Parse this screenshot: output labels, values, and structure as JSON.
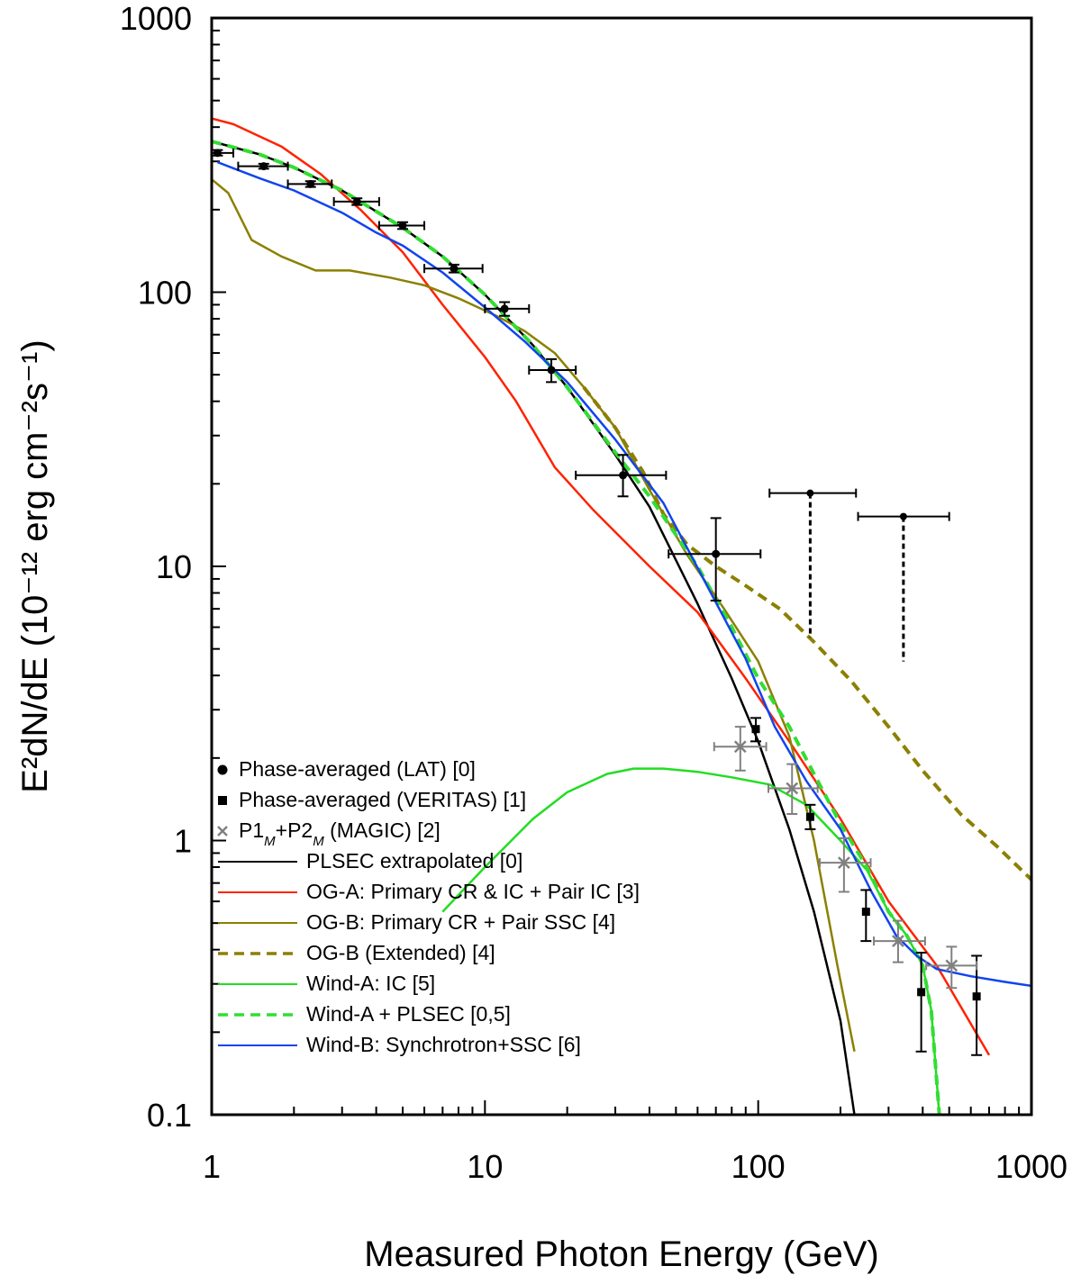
{
  "chart_data": {
    "type": "scatter",
    "x_scale": "log",
    "y_scale": "log",
    "xlabel": "Measured Photon Energy (GeV)",
    "ylabel": "E²dN/dE (10⁻¹² erg cm⁻²s⁻¹)",
    "xlim": [
      1,
      1000
    ],
    "ylim": [
      0.1,
      1000
    ],
    "x_ticks": [
      1,
      10,
      100,
      1000
    ],
    "x_tick_labels": [
      "1",
      "10",
      "100",
      "1000"
    ],
    "y_ticks": [
      0.1,
      1,
      10,
      100,
      1000
    ],
    "y_tick_labels": [
      "0.1",
      "1",
      "10",
      "100",
      "1000"
    ],
    "legend_position": "bottom-left",
    "points": [
      {
        "name": "Phase-averaged (LAT) [0]",
        "marker": "circle",
        "color": "#000000",
        "data": [
          {
            "x": 1.05,
            "y": 322,
            "xlo": 1.0,
            "xhi": 1.2,
            "ylo": 315,
            "yhi": 330
          },
          {
            "x": 1.55,
            "y": 288,
            "xlo": 1.25,
            "xhi": 1.9,
            "ylo": 282,
            "yhi": 294
          },
          {
            "x": 2.3,
            "y": 248,
            "xlo": 1.9,
            "xhi": 2.75,
            "ylo": 242,
            "yhi": 254
          },
          {
            "x": 3.4,
            "y": 214,
            "xlo": 2.8,
            "xhi": 4.1,
            "ylo": 208,
            "yhi": 220
          },
          {
            "x": 5.0,
            "y": 175,
            "xlo": 4.1,
            "xhi": 6.0,
            "ylo": 170,
            "yhi": 180
          },
          {
            "x": 7.7,
            "y": 122,
            "xlo": 6.0,
            "xhi": 9.8,
            "ylo": 118,
            "yhi": 126
          },
          {
            "x": 11.8,
            "y": 87,
            "xlo": 10.0,
            "xhi": 14.5,
            "ylo": 82,
            "yhi": 92
          },
          {
            "x": 17.5,
            "y": 52,
            "xlo": 14.5,
            "xhi": 21.5,
            "ylo": 47,
            "yhi": 57
          },
          {
            "x": 32,
            "y": 21.5,
            "xlo": 21.5,
            "xhi": 46,
            "ylo": 18,
            "yhi": 25.5
          },
          {
            "x": 70,
            "y": 11.1,
            "xlo": 47,
            "xhi": 102,
            "ylo": 7.5,
            "yhi": 15
          }
        ]
      },
      {
        "name": "Phase-averaged (VERITAS) [1]",
        "marker": "square",
        "color": "#000000",
        "data": [
          {
            "x": 98,
            "y": 2.55,
            "ylo": 2.3,
            "yhi": 2.8
          },
          {
            "x": 155,
            "y": 1.22,
            "ylo": 1.1,
            "yhi": 1.35
          },
          {
            "x": 248,
            "y": 0.55,
            "ylo": 0.43,
            "yhi": 0.66
          },
          {
            "x": 395,
            "y": 0.28,
            "ylo": 0.17,
            "yhi": 0.39
          },
          {
            "x": 630,
            "y": 0.27,
            "ylo": 0.165,
            "yhi": 0.38
          }
        ]
      },
      {
        "name": "P1M+P2M (MAGIC) [2]",
        "marker": "x",
        "color": "#808080",
        "data": [
          {
            "x": 86,
            "y": 2.2,
            "xlo": 69,
            "xhi": 107,
            "ylo": 1.8,
            "yhi": 2.6
          },
          {
            "x": 133,
            "y": 1.55,
            "xlo": 109,
            "xhi": 165,
            "ylo": 1.25,
            "yhi": 1.9
          },
          {
            "x": 206,
            "y": 0.83,
            "xlo": 168,
            "xhi": 258,
            "ylo": 0.65,
            "yhi": 1.02
          },
          {
            "x": 325,
            "y": 0.43,
            "xlo": 265,
            "xhi": 408,
            "ylo": 0.36,
            "yhi": 0.51
          },
          {
            "x": 510,
            "y": 0.35,
            "xlo": 412,
            "xhi": 630,
            "ylo": 0.29,
            "yhi": 0.41
          }
        ]
      }
    ],
    "upper_limits": [
      {
        "x": 155,
        "y": 18.5,
        "xlo": 110,
        "xhi": 228,
        "y_end": 5.5
      },
      {
        "x": 340,
        "y": 15.2,
        "xlo": 232,
        "xhi": 500,
        "y_end": 4.5
      }
    ],
    "series": [
      {
        "name": "PLSEC extrapolated [0]",
        "color": "#000000",
        "dash": "solid",
        "x": [
          1,
          1.5,
          2,
          3,
          5,
          7,
          10,
          15,
          20,
          30,
          40,
          60,
          80,
          100,
          130,
          160,
          200,
          225
        ],
        "y": [
          355,
          318,
          285,
          235,
          172,
          135,
          98,
          64,
          45,
          25.5,
          16.5,
          7.3,
          3.9,
          2.3,
          1.1,
          0.55,
          0.22,
          0.1
        ]
      },
      {
        "name": "OG-A: Primary CR & IC + Pair IC [3]",
        "color": "#ff2200",
        "dash": "solid",
        "x": [
          1,
          1.2,
          1.8,
          2.5,
          3.5,
          5,
          7,
          10,
          13,
          18,
          25,
          40,
          60,
          90,
          130,
          200,
          300,
          450,
          700
        ],
        "y": [
          430,
          410,
          340,
          270,
          200,
          140,
          90,
          58,
          40,
          23,
          16,
          10,
          6.8,
          3.9,
          2.3,
          1.2,
          0.6,
          0.35,
          0.165
        ]
      },
      {
        "name": "OG-B: Primary CR + Pair SSC [4]",
        "color": "#8b8000",
        "dash": "solid",
        "x": [
          1,
          1.15,
          1.4,
          1.8,
          2.4,
          3.2,
          4.5,
          6,
          8,
          11,
          14,
          18,
          23,
          30,
          40,
          55,
          75,
          100,
          130,
          160,
          195,
          225
        ],
        "y": [
          258,
          230,
          155,
          135,
          120,
          120,
          113,
          106,
          95,
          82,
          72,
          60,
          45,
          32,
          19,
          11,
          7,
          4.5,
          2.4,
          1.0,
          0.35,
          0.17
        ]
      },
      {
        "name": "OG-B (Extended) [4]",
        "color": "#8b8000",
        "dash": "dashed",
        "x": [
          23,
          30,
          38,
          45,
          55,
          70,
          90,
          120,
          160,
          220,
          300,
          400,
          550,
          750,
          1000
        ],
        "y": [
          45,
          32,
          22,
          15.5,
          12,
          10,
          8.5,
          7,
          5.3,
          3.8,
          2.6,
          1.8,
          1.25,
          0.95,
          0.72
        ]
      },
      {
        "name": "Wind-A: IC [5]",
        "color": "#22dd22",
        "dash": "solid",
        "x": [
          7,
          10,
          15,
          20,
          28,
          35,
          45,
          60,
          80,
          110,
          150,
          200,
          250,
          300,
          350,
          400,
          430,
          460
        ],
        "y": [
          0.55,
          0.8,
          1.2,
          1.5,
          1.75,
          1.83,
          1.83,
          1.78,
          1.7,
          1.6,
          1.35,
          1.0,
          0.78,
          0.55,
          0.45,
          0.35,
          0.24,
          0.1
        ]
      },
      {
        "name": "Wind-A + PLSEC [0,5]",
        "color": "#33dd33",
        "dash": "dashed",
        "x": [
          1,
          1.5,
          2,
          3,
          5,
          7,
          10,
          15,
          20,
          30,
          40,
          60,
          80,
          100,
          130,
          160,
          200,
          250,
          300,
          350,
          400,
          430,
          460
        ],
        "y": [
          355,
          318,
          285,
          235,
          172,
          135,
          98,
          64,
          45,
          26,
          18,
          10,
          6,
          3.9,
          2.6,
          1.75,
          1.15,
          0.8,
          0.55,
          0.45,
          0.35,
          0.24,
          0.1
        ]
      },
      {
        "name": "Wind-B: Synchrotron+SSC [6]",
        "color": "#1144ee",
        "dash": "solid",
        "x": [
          1.05,
          1.5,
          2,
          3,
          4,
          5,
          7,
          10,
          14,
          20,
          30,
          45,
          65,
          90,
          115,
          150,
          200,
          260,
          320,
          380,
          450,
          600,
          800,
          1000
        ],
        "y": [
          298,
          260,
          235,
          195,
          165,
          148,
          118,
          88,
          66,
          47,
          29,
          17,
          8.5,
          4.6,
          2.6,
          1.65,
          1.1,
          0.65,
          0.45,
          0.38,
          0.34,
          0.32,
          0.305,
          0.295
        ]
      }
    ],
    "legend": [
      {
        "label": "Phase-averaged (LAT) [0]",
        "kind": "circle",
        "color": "#000000"
      },
      {
        "label": "Phase-averaged (VERITAS) [1]",
        "kind": "square",
        "color": "#000000"
      },
      {
        "label": "P1",
        "sub": "M",
        "label2": "+P2",
        "sub2": "M",
        "label3": " (MAGIC) [2]",
        "kind": "x",
        "color": "#808080"
      },
      {
        "label": "PLSEC extrapolated [0]",
        "kind": "line",
        "color": "#000000",
        "dash": "solid"
      },
      {
        "label": "OG-A: Primary CR & IC + Pair IC [3]",
        "kind": "line",
        "color": "#ff2200",
        "dash": "solid"
      },
      {
        "label": "OG-B: Primary CR + Pair SSC [4]",
        "kind": "line",
        "color": "#8b8000",
        "dash": "solid"
      },
      {
        "label": "OG-B (Extended) [4]",
        "kind": "line",
        "color": "#8b8000",
        "dash": "dashed"
      },
      {
        "label": "Wind-A: IC [5]",
        "kind": "line",
        "color": "#22dd22",
        "dash": "solid"
      },
      {
        "label": "Wind-A + PLSEC [0,5]",
        "kind": "line",
        "color": "#33dd33",
        "dash": "dashed"
      },
      {
        "label": "Wind-B: Synchrotron+SSC [6]",
        "kind": "line",
        "color": "#1144ee",
        "dash": "solid"
      }
    ]
  }
}
